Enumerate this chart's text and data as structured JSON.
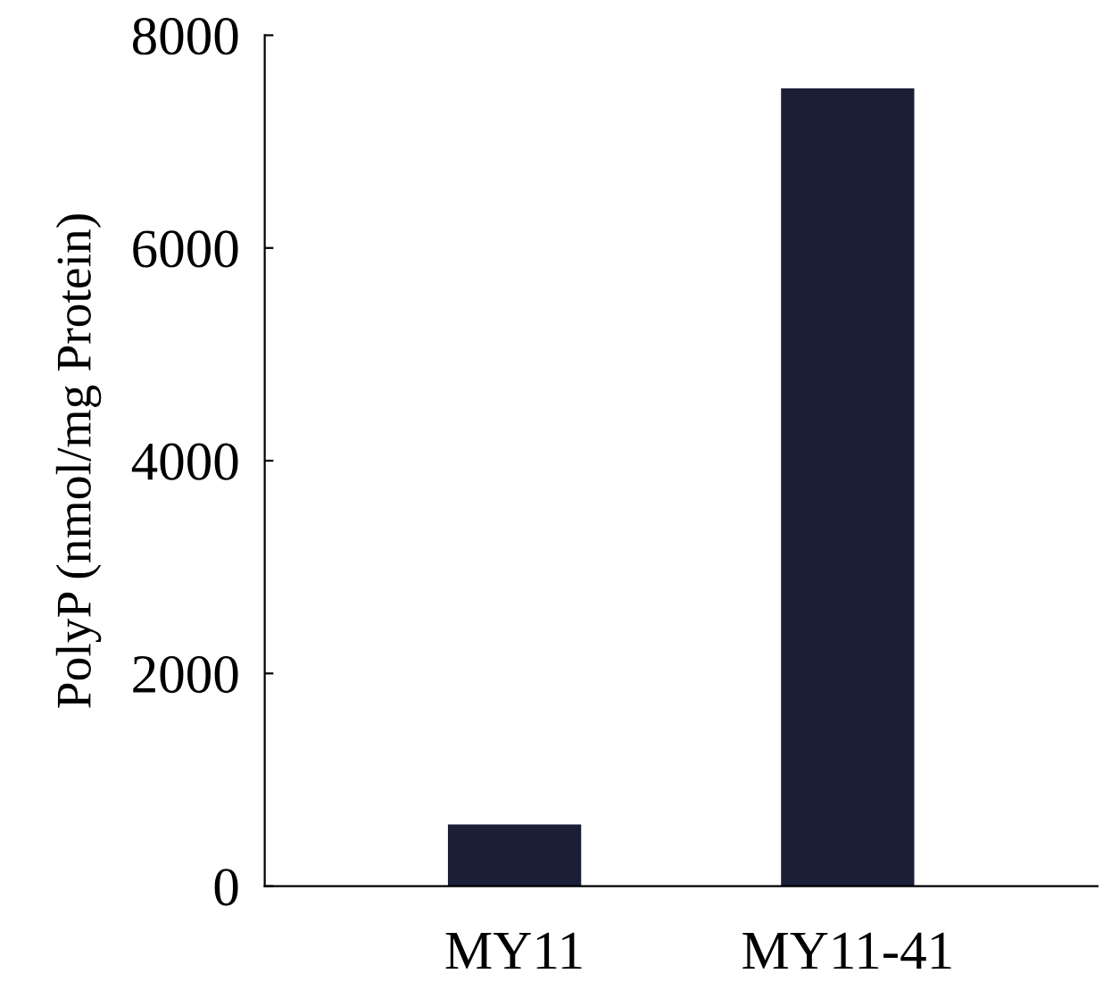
{
  "chart_data": {
    "type": "bar",
    "ylabel": "PolyP (nmol/mg Protein)",
    "categories": [
      "MY11",
      "MY11-41"
    ],
    "values": [
      580,
      7500
    ],
    "color": "#1a1f36",
    "ylim": [
      0,
      8000
    ],
    "yticks": [
      0,
      2000,
      4000,
      6000,
      8000
    ],
    "grid": false,
    "legend": false
  }
}
